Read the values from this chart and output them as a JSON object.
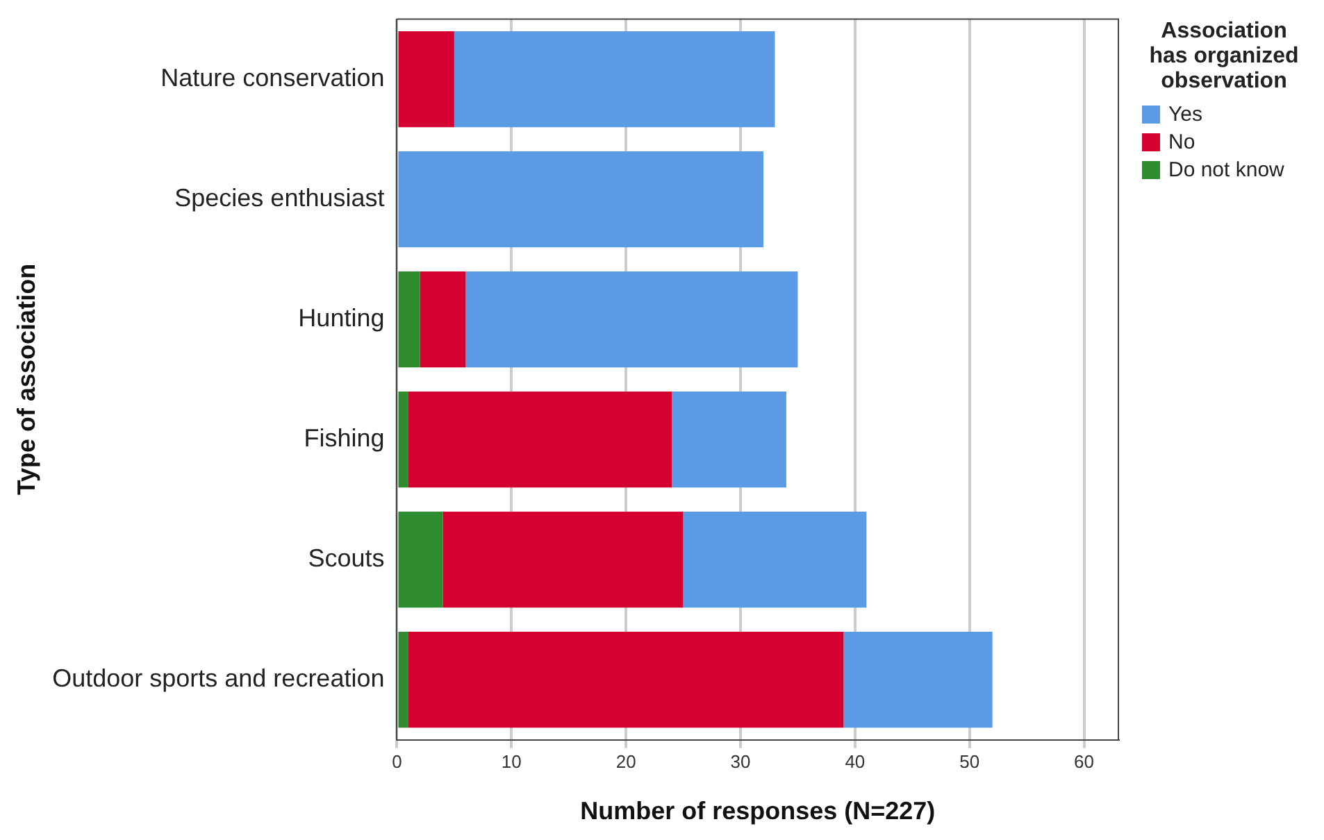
{
  "chart_data": {
    "type": "bar",
    "orientation": "horizontal",
    "stacked": true,
    "xlabel": "Number of responses (N=227)",
    "ylabel": "Type of association",
    "legend_title": "Association has organized observation",
    "categories": [
      "Nature conservation",
      "Species enthusiast",
      "Hunting",
      "Fishing",
      "Scouts",
      "Outdoor sports and recreation"
    ],
    "series": [
      {
        "name": "Do not know",
        "color": "#2e8b2e",
        "values": [
          0,
          0,
          2,
          1,
          4,
          1
        ]
      },
      {
        "name": "No",
        "color": "#d40032",
        "values": [
          5,
          0,
          4,
          23,
          21,
          38
        ]
      },
      {
        "name": "Yes",
        "color": "#5b9be6",
        "values": [
          28,
          32,
          29,
          10,
          16,
          13
        ]
      }
    ],
    "xlim": [
      0,
      63
    ],
    "xticks": [
      0,
      10,
      20,
      30,
      40,
      50,
      60
    ],
    "grid": "x",
    "legend": "top right"
  }
}
